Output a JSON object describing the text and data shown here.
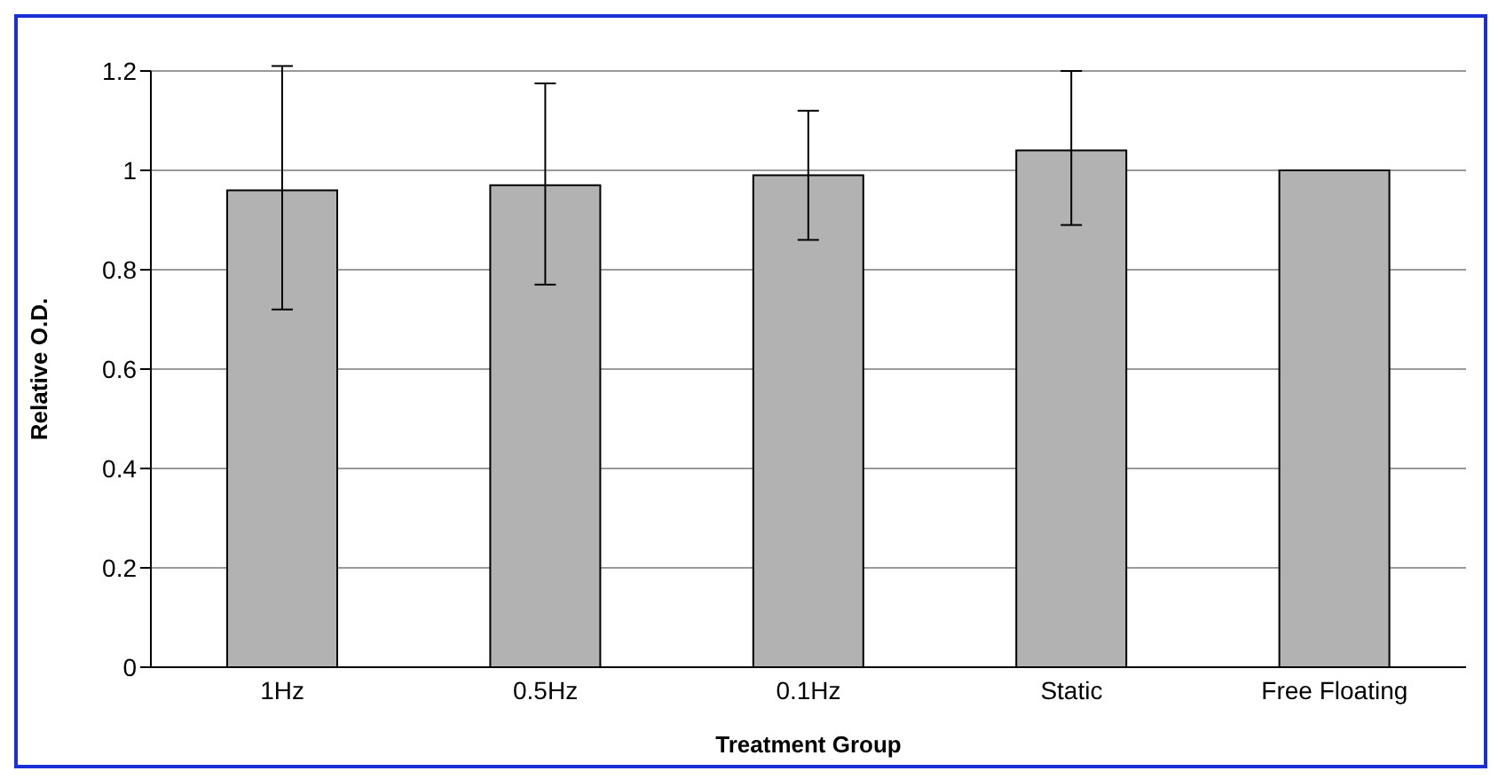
{
  "chart_data": {
    "type": "bar",
    "xlabel": "Treatment Group",
    "ylabel": "Relative O.D.",
    "categories": [
      "1Hz",
      "0.5Hz",
      "0.1Hz",
      "Static",
      "Free Floating"
    ],
    "values": [
      0.96,
      0.97,
      0.99,
      1.04,
      1.0
    ],
    "errors": [
      [
        0.72,
        1.21
      ],
      [
        0.77,
        1.175
      ],
      [
        0.86,
        1.12
      ],
      [
        0.89,
        1.2
      ],
      null
    ],
    "color": "#b2b2b2",
    "ylim": [
      0,
      1.2
    ],
    "yticks": [
      0,
      0.2,
      0.4,
      0.6,
      0.8,
      1,
      1.2
    ],
    "grid": "y",
    "legend": false
  }
}
